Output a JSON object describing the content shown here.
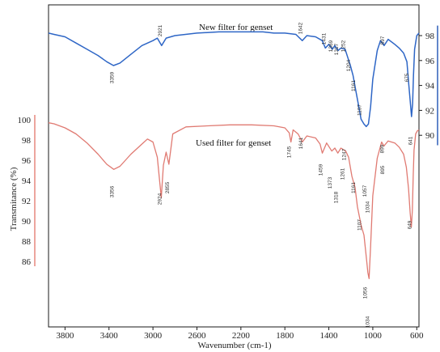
{
  "chart_data": {
    "type": "line",
    "xlabel": "Wavenumber (cm-1)",
    "xlim": [
      3950,
      580
    ],
    "x_ticks": [
      3800,
      3400,
      3000,
      2600,
      2200,
      1800,
      1400,
      1000,
      600
    ],
    "left_axis": {
      "label": "Transmitance (%)",
      "ticks": [
        100,
        98,
        96,
        94,
        92,
        90,
        88,
        86
      ],
      "color": "#e7877f"
    },
    "right_axis": {
      "ticks": [
        98,
        96,
        94,
        92,
        90
      ],
      "color": "#2e5fb8"
    },
    "series": [
      {
        "name": "New filter for genset",
        "color": "#2e66c6",
        "points": [
          [
            3950,
            98.2
          ],
          [
            3900,
            98.1
          ],
          [
            3800,
            97.9
          ],
          [
            3700,
            97.4
          ],
          [
            3600,
            96.9
          ],
          [
            3500,
            96.4
          ],
          [
            3420,
            95.9
          ],
          [
            3359,
            95.6
          ],
          [
            3300,
            95.8
          ],
          [
            3200,
            96.5
          ],
          [
            3100,
            97.2
          ],
          [
            3000,
            97.6
          ],
          [
            2960,
            97.8
          ],
          [
            2921,
            97.2
          ],
          [
            2880,
            97.8
          ],
          [
            2800,
            98.0
          ],
          [
            2600,
            98.2
          ],
          [
            2400,
            98.3
          ],
          [
            2200,
            98.3
          ],
          [
            2000,
            98.3
          ],
          [
            1900,
            98.2
          ],
          [
            1800,
            98.2
          ],
          [
            1700,
            98.1
          ],
          [
            1642,
            97.6
          ],
          [
            1600,
            98.0
          ],
          [
            1520,
            97.9
          ],
          [
            1460,
            97.6
          ],
          [
            1431,
            97.0
          ],
          [
            1400,
            97.3
          ],
          [
            1369,
            96.9
          ],
          [
            1345,
            97.2
          ],
          [
            1317,
            96.8
          ],
          [
            1290,
            97.0
          ],
          [
            1252,
            96.9
          ],
          [
            1230,
            96.3
          ],
          [
            1204,
            95.6
          ],
          [
            1180,
            94.8
          ],
          [
            1161,
            93.9
          ],
          [
            1130,
            92.4
          ],
          [
            1107,
            91.3
          ],
          [
            1080,
            90.9
          ],
          [
            1060,
            90.7
          ],
          [
            1040,
            90.9
          ],
          [
            1020,
            92.3
          ],
          [
            1000,
            94.5
          ],
          [
            960,
            96.8
          ],
          [
            930,
            97.6
          ],
          [
            897,
            97.2
          ],
          [
            860,
            97.7
          ],
          [
            800,
            97.3
          ],
          [
            760,
            97.0
          ],
          [
            720,
            96.6
          ],
          [
            690,
            95.9
          ],
          [
            675,
            94.3
          ],
          [
            660,
            92.8
          ],
          [
            648,
            91.5
          ],
          [
            638,
            92.5
          ],
          [
            630,
            94.8
          ],
          [
            620,
            96.9
          ],
          [
            600,
            98.0
          ],
          [
            580,
            98.2
          ]
        ],
        "peak_labels": [
          "3359",
          "2921",
          "1642",
          "1431",
          "1369",
          "1317",
          "1252",
          "1204",
          "1161",
          "1107",
          "897",
          "675"
        ]
      },
      {
        "name": "Used filter for genset",
        "color": "#e07a72",
        "points": [
          [
            3950,
            99.7
          ],
          [
            3900,
            99.6
          ],
          [
            3800,
            99.2
          ],
          [
            3700,
            98.6
          ],
          [
            3600,
            97.7
          ],
          [
            3500,
            96.6
          ],
          [
            3420,
            95.6
          ],
          [
            3356,
            95.1
          ],
          [
            3300,
            95.4
          ],
          [
            3200,
            96.6
          ],
          [
            3100,
            97.6
          ],
          [
            3050,
            98.1
          ],
          [
            3000,
            97.8
          ],
          [
            2960,
            96.3
          ],
          [
            2940,
            94.0
          ],
          [
            2924,
            92.3
          ],
          [
            2905,
            95.5
          ],
          [
            2880,
            96.8
          ],
          [
            2855,
            95.6
          ],
          [
            2820,
            98.6
          ],
          [
            2700,
            99.3
          ],
          [
            2500,
            99.4
          ],
          [
            2300,
            99.5
          ],
          [
            2100,
            99.5
          ],
          [
            1900,
            99.4
          ],
          [
            1800,
            99.2
          ],
          [
            1760,
            98.7
          ],
          [
            1745,
            97.8
          ],
          [
            1725,
            99.0
          ],
          [
            1680,
            98.6
          ],
          [
            1641,
            97.8
          ],
          [
            1600,
            98.4
          ],
          [
            1520,
            98.2
          ],
          [
            1480,
            97.6
          ],
          [
            1459,
            96.7
          ],
          [
            1420,
            97.7
          ],
          [
            1373,
            96.9
          ],
          [
            1345,
            97.2
          ],
          [
            1318,
            96.7
          ],
          [
            1290,
            97.2
          ],
          [
            1247,
            96.9
          ],
          [
            1220,
            96.3
          ],
          [
            1190,
            94.4
          ],
          [
            1161,
            93.3
          ],
          [
            1140,
            91.4
          ],
          [
            1107,
            89.6
          ],
          [
            1080,
            88.6
          ],
          [
            1056,
            86.1
          ],
          [
            1045,
            84.9
          ],
          [
            1034,
            84.3
          ],
          [
            1020,
            87.5
          ],
          [
            1000,
            92.5
          ],
          [
            960,
            96.2
          ],
          [
            920,
            97.8
          ],
          [
            899,
            97.4
          ],
          [
            860,
            97.9
          ],
          [
            800,
            97.7
          ],
          [
            760,
            97.3
          ],
          [
            720,
            96.6
          ],
          [
            695,
            95.3
          ],
          [
            675,
            93.2
          ],
          [
            660,
            90.8
          ],
          [
            649,
            89.4
          ],
          [
            640,
            91.0
          ],
          [
            632,
            94.5
          ],
          [
            625,
            97.0
          ],
          [
            610,
            98.6
          ],
          [
            595,
            98.9
          ],
          [
            580,
            99.0
          ]
        ],
        "peak_labels": [
          "3356",
          "2924",
          "2855",
          "1745",
          "1641",
          "1459",
          "1373",
          "1318",
          "1247",
          "1261",
          "1161",
          "1107",
          "1057",
          "1034",
          "1056",
          "1034",
          "899",
          "895",
          "641",
          "649"
        ]
      }
    ]
  },
  "axis_color": "#1a1a1a"
}
